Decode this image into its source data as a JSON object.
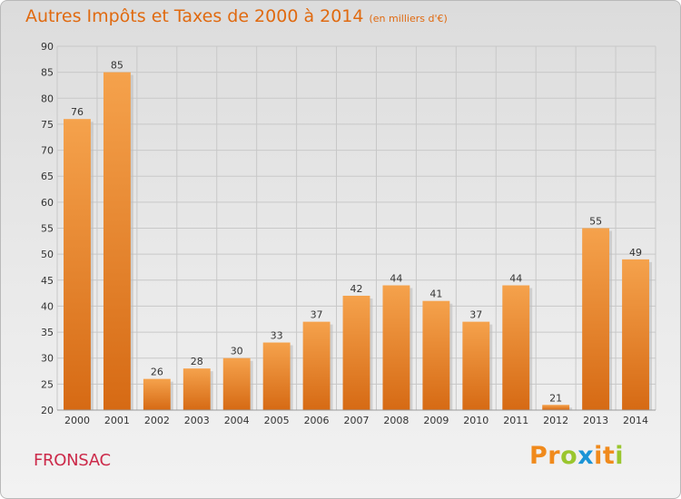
{
  "header": {
    "title": "Autres Impôts et Taxes de 2000 à 2014",
    "subtitle": "(en milliers d'€)"
  },
  "footer": {
    "city": "FRONSAC",
    "logo": "Proxiti"
  },
  "colors": {
    "title": "#e06a10",
    "city": "#cc2a4a",
    "bar_top": "#f5a24c",
    "bar_bottom": "#d66a14",
    "bar_shadow": "#bdbdbd",
    "grid": "#c8c8c8",
    "logo_letters": [
      "#f08a1c",
      "#f08a1c",
      "#9ac62e",
      "#1b94d6",
      "#f08a1c",
      "#f08a1c",
      "#9ac62e"
    ]
  },
  "chart_data": {
    "type": "bar",
    "title": "Autres Impôts et Taxes de 2000 à 2014",
    "subtitle": "(en milliers d'€)",
    "categories": [
      "2000",
      "2001",
      "2002",
      "2003",
      "2004",
      "2005",
      "2006",
      "2007",
      "2008",
      "2009",
      "2010",
      "2011",
      "2012",
      "2013",
      "2014"
    ],
    "values": [
      76,
      85,
      26,
      28,
      30,
      33,
      37,
      42,
      44,
      41,
      37,
      44,
      21,
      55,
      49
    ],
    "ylim": [
      20,
      90
    ],
    "yticks": [
      20,
      25,
      30,
      35,
      40,
      45,
      50,
      55,
      60,
      65,
      70,
      75,
      80,
      85,
      90
    ],
    "grid": true,
    "xlabel": "",
    "ylabel": ""
  }
}
